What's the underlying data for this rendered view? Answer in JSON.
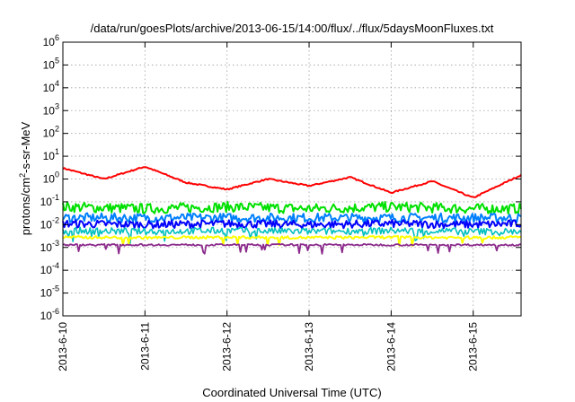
{
  "chart_data": {
    "type": "line",
    "title": "/data/run/goesPlots/archive/2013-06-15/14:00/flux/../flux/5daysMoonFluxes.txt",
    "xlabel": "Coordinated Universal Time (UTC)",
    "ylabel": {
      "prefix": "protons/cm",
      "superscript": "2",
      "suffix": "-s-sr-MeV"
    },
    "y_scale": "log",
    "ylim": [
      1e-06,
      1000000.0
    ],
    "y_ticks": [
      {
        "base": "10",
        "exp": "-6"
      },
      {
        "base": "10",
        "exp": "-5"
      },
      {
        "base": "10",
        "exp": "-4"
      },
      {
        "base": "10",
        "exp": "-3"
      },
      {
        "base": "10",
        "exp": "-2"
      },
      {
        "base": "10",
        "exp": "-1"
      },
      {
        "base": "10",
        "exp": "0"
      },
      {
        "base": "10",
        "exp": "1"
      },
      {
        "base": "10",
        "exp": "2"
      },
      {
        "base": "10",
        "exp": "3"
      },
      {
        "base": "10",
        "exp": "4"
      },
      {
        "base": "10",
        "exp": "5"
      },
      {
        "base": "10",
        "exp": "6"
      }
    ],
    "xlim": [
      "2013-06-10",
      "2013-06-15 14:00"
    ],
    "x_ticks": [
      "2013-6-10",
      "2013-6-11",
      "2013-6-12",
      "2013-6-13",
      "2013-6-14",
      "2013-6-15"
    ],
    "grid": true,
    "series": [
      {
        "color": "#ff0000",
        "x": [
          "2013-06-10",
          "2013-06-10 12:00",
          "2013-06-11",
          "2013-06-11 12:00",
          "2013-06-12",
          "2013-06-12 12:00",
          "2013-06-13",
          "2013-06-13 12:00",
          "2013-06-14",
          "2013-06-14 12:00",
          "2013-06-15",
          "2013-06-15 14:00"
        ],
        "values": [
          3.0,
          1.0,
          3.5,
          0.7,
          0.35,
          1.0,
          0.5,
          1.2,
          0.25,
          0.8,
          0.15,
          1.5
        ]
      },
      {
        "color": "#00e000",
        "x": [
          "2013-06-10",
          "2013-06-11",
          "2013-06-12",
          "2013-06-13",
          "2013-06-14",
          "2013-06-15",
          "2013-06-15 14:00"
        ],
        "values": [
          0.06,
          0.05,
          0.06,
          0.05,
          0.06,
          0.05,
          0.05
        ]
      },
      {
        "color": "#0080ff",
        "x": [
          "2013-06-10",
          "2013-06-11",
          "2013-06-12",
          "2013-06-13",
          "2013-06-14",
          "2013-06-15",
          "2013-06-15 14:00"
        ],
        "values": [
          0.02,
          0.02,
          0.02,
          0.02,
          0.02,
          0.02,
          0.02
        ]
      },
      {
        "color": "#0000ff",
        "x": [
          "2013-06-10",
          "2013-06-11",
          "2013-06-12",
          "2013-06-13",
          "2013-06-14",
          "2013-06-15",
          "2013-06-15 14:00"
        ],
        "values": [
          0.011,
          0.01,
          0.011,
          0.01,
          0.011,
          0.01,
          0.011
        ]
      },
      {
        "color": "#00bfbf",
        "x": [
          "2013-06-10",
          "2013-06-11",
          "2013-06-12",
          "2013-06-13",
          "2013-06-14",
          "2013-06-15",
          "2013-06-15 14:00"
        ],
        "values": [
          0.0055,
          0.005,
          0.0055,
          0.005,
          0.0055,
          0.005,
          0.005
        ]
      },
      {
        "color": "#ffff00",
        "x": [
          "2013-06-10",
          "2013-06-11",
          "2013-06-12",
          "2013-06-13",
          "2013-06-14",
          "2013-06-15",
          "2013-06-15 14:00"
        ],
        "values": [
          0.0028,
          0.0027,
          0.0028,
          0.0027,
          0.0028,
          0.0027,
          0.0028
        ]
      },
      {
        "color": "#8b2a8b",
        "x": [
          "2013-06-10",
          "2013-06-11",
          "2013-06-12",
          "2013-06-13",
          "2013-06-14",
          "2013-06-15",
          "2013-06-15 14:00"
        ],
        "values": [
          0.0013,
          0.0013,
          0.0013,
          0.0013,
          0.0013,
          0.0013,
          0.0013
        ]
      }
    ]
  }
}
